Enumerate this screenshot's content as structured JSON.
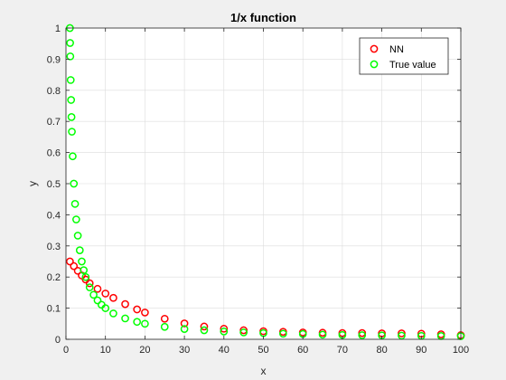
{
  "chart_data": {
    "type": "scatter",
    "title": "1/x function",
    "xlabel": "x",
    "ylabel": "y",
    "xlim": [
      0,
      100
    ],
    "ylim": [
      0,
      1
    ],
    "xticks": [
      0,
      10,
      20,
      30,
      40,
      50,
      60,
      70,
      80,
      90,
      100
    ],
    "yticks": [
      0,
      0.1,
      0.2,
      0.3,
      0.4,
      0.5,
      0.6,
      0.7,
      0.8,
      0.9,
      1
    ],
    "xtick_labels": [
      "0",
      "10",
      "20",
      "30",
      "40",
      "50",
      "60",
      "70",
      "80",
      "90",
      "100"
    ],
    "ytick_labels": [
      "0",
      "0.1",
      "0.2",
      "0.3",
      "0.4",
      "0.5",
      "0.6",
      "0.7",
      "0.8",
      "0.9",
      "1"
    ],
    "grid": true,
    "legend_position": "top-right",
    "series": [
      {
        "name": "NN",
        "color": "#ff0000",
        "marker": "circle-open",
        "x": [
          1,
          2,
          3,
          4,
          5,
          6,
          8,
          10,
          12,
          15,
          18,
          20,
          25,
          30,
          35,
          40,
          45,
          50,
          55,
          60,
          65,
          70,
          75,
          80,
          85,
          90,
          95,
          100
        ],
        "y": [
          0.25,
          0.235,
          0.22,
          0.205,
          0.192,
          0.18,
          0.162,
          0.147,
          0.133,
          0.113,
          0.096,
          0.086,
          0.066,
          0.051,
          0.041,
          0.034,
          0.029,
          0.026,
          0.024,
          0.022,
          0.021,
          0.02,
          0.02,
          0.019,
          0.019,
          0.018,
          0.016,
          0.013
        ]
      },
      {
        "name": "True value",
        "color": "#00ff00",
        "marker": "circle-open",
        "x": [
          1,
          1.05,
          1.1,
          1.2,
          1.3,
          1.4,
          1.5,
          1.7,
          2,
          2.3,
          2.6,
          3,
          3.5,
          4,
          4.5,
          5,
          6,
          7,
          8,
          9,
          10,
          12,
          15,
          18,
          20,
          25,
          30,
          35,
          40,
          45,
          50,
          55,
          60,
          65,
          70,
          75,
          80,
          85,
          90,
          95,
          100
        ],
        "y": [
          1,
          0.952,
          0.909,
          0.833,
          0.769,
          0.714,
          0.667,
          0.588,
          0.5,
          0.435,
          0.385,
          0.333,
          0.286,
          0.25,
          0.222,
          0.2,
          0.167,
          0.143,
          0.125,
          0.111,
          0.1,
          0.083,
          0.067,
          0.056,
          0.05,
          0.04,
          0.033,
          0.029,
          0.025,
          0.022,
          0.02,
          0.018,
          0.017,
          0.015,
          0.014,
          0.013,
          0.0125,
          0.0118,
          0.0111,
          0.0105,
          0.01
        ]
      }
    ]
  }
}
